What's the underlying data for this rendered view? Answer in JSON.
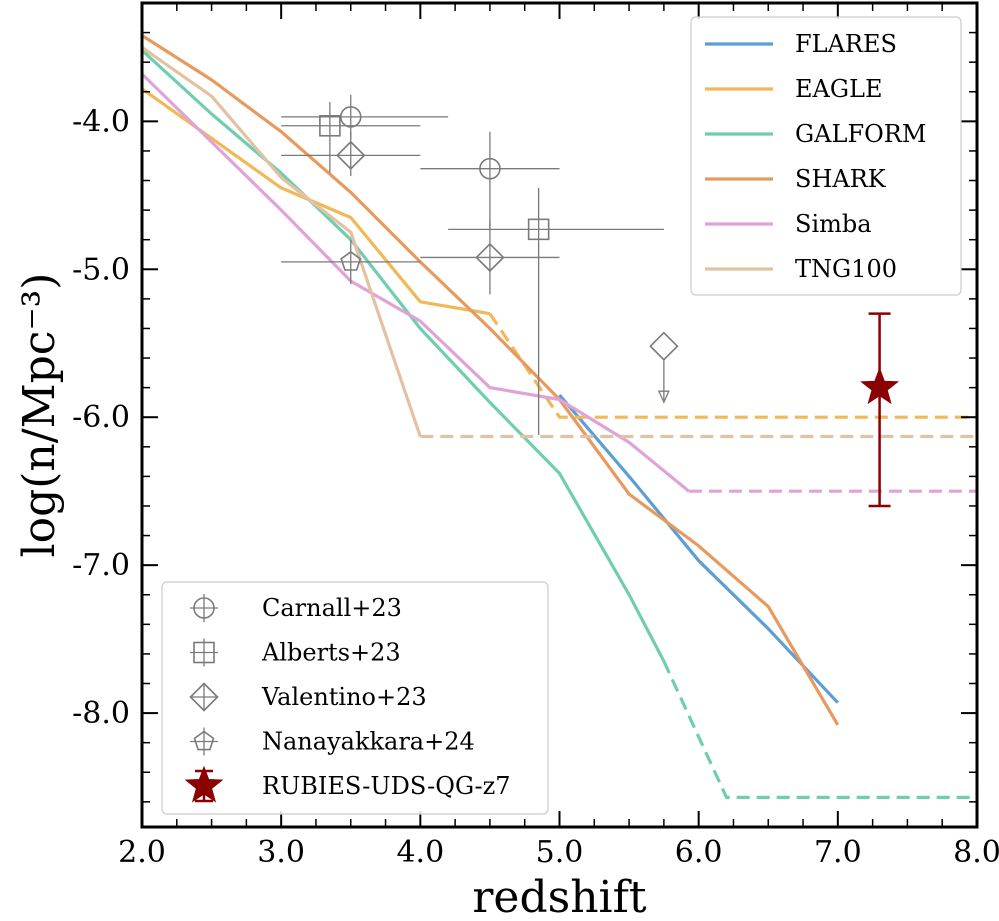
{
  "chart_data": {
    "type": "line",
    "title": "",
    "xlabel": "redshift",
    "ylabel": "log(n/Mpc⁻³)",
    "xlim": [
      2.0,
      8.0
    ],
    "ylim": [
      -8.77,
      -3.2
    ],
    "xticks": [
      2.0,
      3.0,
      4.0,
      5.0,
      6.0,
      7.0,
      8.0
    ],
    "xtick_labels": [
      "2.0",
      "3.0",
      "4.0",
      "5.0",
      "6.0",
      "7.0",
      "8.0"
    ],
    "yticks": [
      -4.0,
      -5.0,
      -6.0,
      -7.0,
      -8.0
    ],
    "ytick_labels": [
      "-4.0",
      "-5.0",
      "-6.0",
      "-7.0",
      "-8.0"
    ],
    "grid": false,
    "legend_models_position": "top-right",
    "legend_observations_position": "bottom-left",
    "series": [
      {
        "name": "FLARES",
        "color": "#5b9fd3",
        "solid": [
          [
            5.0,
            -5.85
          ],
          [
            5.5,
            -6.4
          ],
          [
            6.0,
            -6.97
          ],
          [
            6.5,
            -7.43
          ],
          [
            7.0,
            -7.93
          ]
        ],
        "dashed": []
      },
      {
        "name": "EAGLE",
        "color": "#f0b857",
        "solid": [
          [
            2.0,
            -3.78
          ],
          [
            3.0,
            -4.45
          ],
          [
            3.5,
            -4.65
          ],
          [
            4.0,
            -5.22
          ],
          [
            4.5,
            -5.3
          ]
        ],
        "dashed": [
          [
            4.5,
            -5.3
          ],
          [
            5.0,
            -6.0
          ],
          [
            8.0,
            -6.0
          ]
        ]
      },
      {
        "name": "GALFORM",
        "color": "#6fcdb0",
        "solid": [
          [
            2.0,
            -3.52
          ],
          [
            2.5,
            -3.95
          ],
          [
            3.0,
            -4.35
          ],
          [
            3.5,
            -4.8
          ],
          [
            4.0,
            -5.4
          ],
          [
            4.5,
            -5.9
          ],
          [
            5.0,
            -6.38
          ],
          [
            5.5,
            -7.2
          ],
          [
            5.75,
            -7.65
          ]
        ],
        "dashed": [
          [
            5.75,
            -7.65
          ],
          [
            6.2,
            -8.57
          ],
          [
            8.0,
            -8.57
          ]
        ]
      },
      {
        "name": "SHARK",
        "color": "#e89a5e",
        "solid": [
          [
            2.0,
            -3.42
          ],
          [
            2.5,
            -3.72
          ],
          [
            3.0,
            -4.07
          ],
          [
            3.5,
            -4.48
          ],
          [
            4.0,
            -4.95
          ],
          [
            4.5,
            -5.4
          ],
          [
            5.0,
            -5.88
          ],
          [
            5.5,
            -6.52
          ],
          [
            6.0,
            -6.87
          ],
          [
            6.5,
            -7.28
          ],
          [
            7.0,
            -8.08
          ]
        ],
        "dashed": []
      },
      {
        "name": "Simba",
        "color": "#e0a3d8",
        "solid": [
          [
            2.0,
            -3.68
          ],
          [
            3.0,
            -4.6
          ],
          [
            3.5,
            -5.08
          ],
          [
            4.0,
            -5.35
          ],
          [
            4.5,
            -5.8
          ],
          [
            5.0,
            -5.88
          ],
          [
            5.5,
            -6.17
          ],
          [
            5.93,
            -6.5
          ]
        ],
        "dashed": [
          [
            5.93,
            -6.5
          ],
          [
            8.0,
            -6.5
          ]
        ]
      },
      {
        "name": "TNG100",
        "color": "#e2c2a3",
        "solid": [
          [
            2.0,
            -3.5
          ],
          [
            2.5,
            -3.83
          ],
          [
            3.0,
            -4.38
          ],
          [
            3.5,
            -4.75
          ],
          [
            4.0,
            -6.13
          ]
        ],
        "dashed": [
          [
            4.0,
            -6.13
          ],
          [
            8.0,
            -6.13
          ]
        ]
      }
    ],
    "observations": [
      {
        "name": "Carnall+23",
        "marker": "circle",
        "points": [
          {
            "x": 3.5,
            "y": -3.97,
            "xlo": 3.0,
            "xhi": 4.2,
            "ylo": -4.12,
            "yhi": -3.82
          },
          {
            "x": 4.5,
            "y": -4.32,
            "xlo": 4.0,
            "xhi": 5.0,
            "ylo": -4.72,
            "yhi": -4.07
          }
        ]
      },
      {
        "name": "Alberts+23",
        "marker": "square",
        "points": [
          {
            "x": 3.35,
            "y": -4.03,
            "xlo": 3.0,
            "xhi": 4.0,
            "ylo": -4.35,
            "yhi": -3.87
          },
          {
            "x": 4.85,
            "y": -4.73,
            "xlo": 4.2,
            "xhi": 5.75,
            "ylo": -6.12,
            "yhi": -4.45
          }
        ]
      },
      {
        "name": "Valentino+23",
        "marker": "diamond",
        "points": [
          {
            "x": 3.5,
            "y": -4.23,
            "xlo": 3.0,
            "xhi": 4.0,
            "ylo": -4.37,
            "yhi": -4.07
          },
          {
            "x": 4.5,
            "y": -4.92,
            "xlo": 4.0,
            "xhi": 5.0,
            "ylo": -5.17,
            "yhi": -4.67
          }
        ],
        "upper_limits": [
          {
            "x": 5.75,
            "y": -5.52
          }
        ]
      },
      {
        "name": "Nanayakkara+24",
        "marker": "pentagon",
        "points": [
          {
            "x": 3.5,
            "y": -4.95,
            "xlo": 3.0,
            "xhi": 4.0,
            "ylo": -5.1,
            "yhi": -4.8
          }
        ]
      },
      {
        "name": "RUBIES-UDS-QG-z7",
        "marker": "star",
        "color": "#8b0000",
        "points": [
          {
            "x": 7.3,
            "y": -5.8,
            "ylo": -6.6,
            "yhi": -5.3
          }
        ]
      }
    ]
  }
}
